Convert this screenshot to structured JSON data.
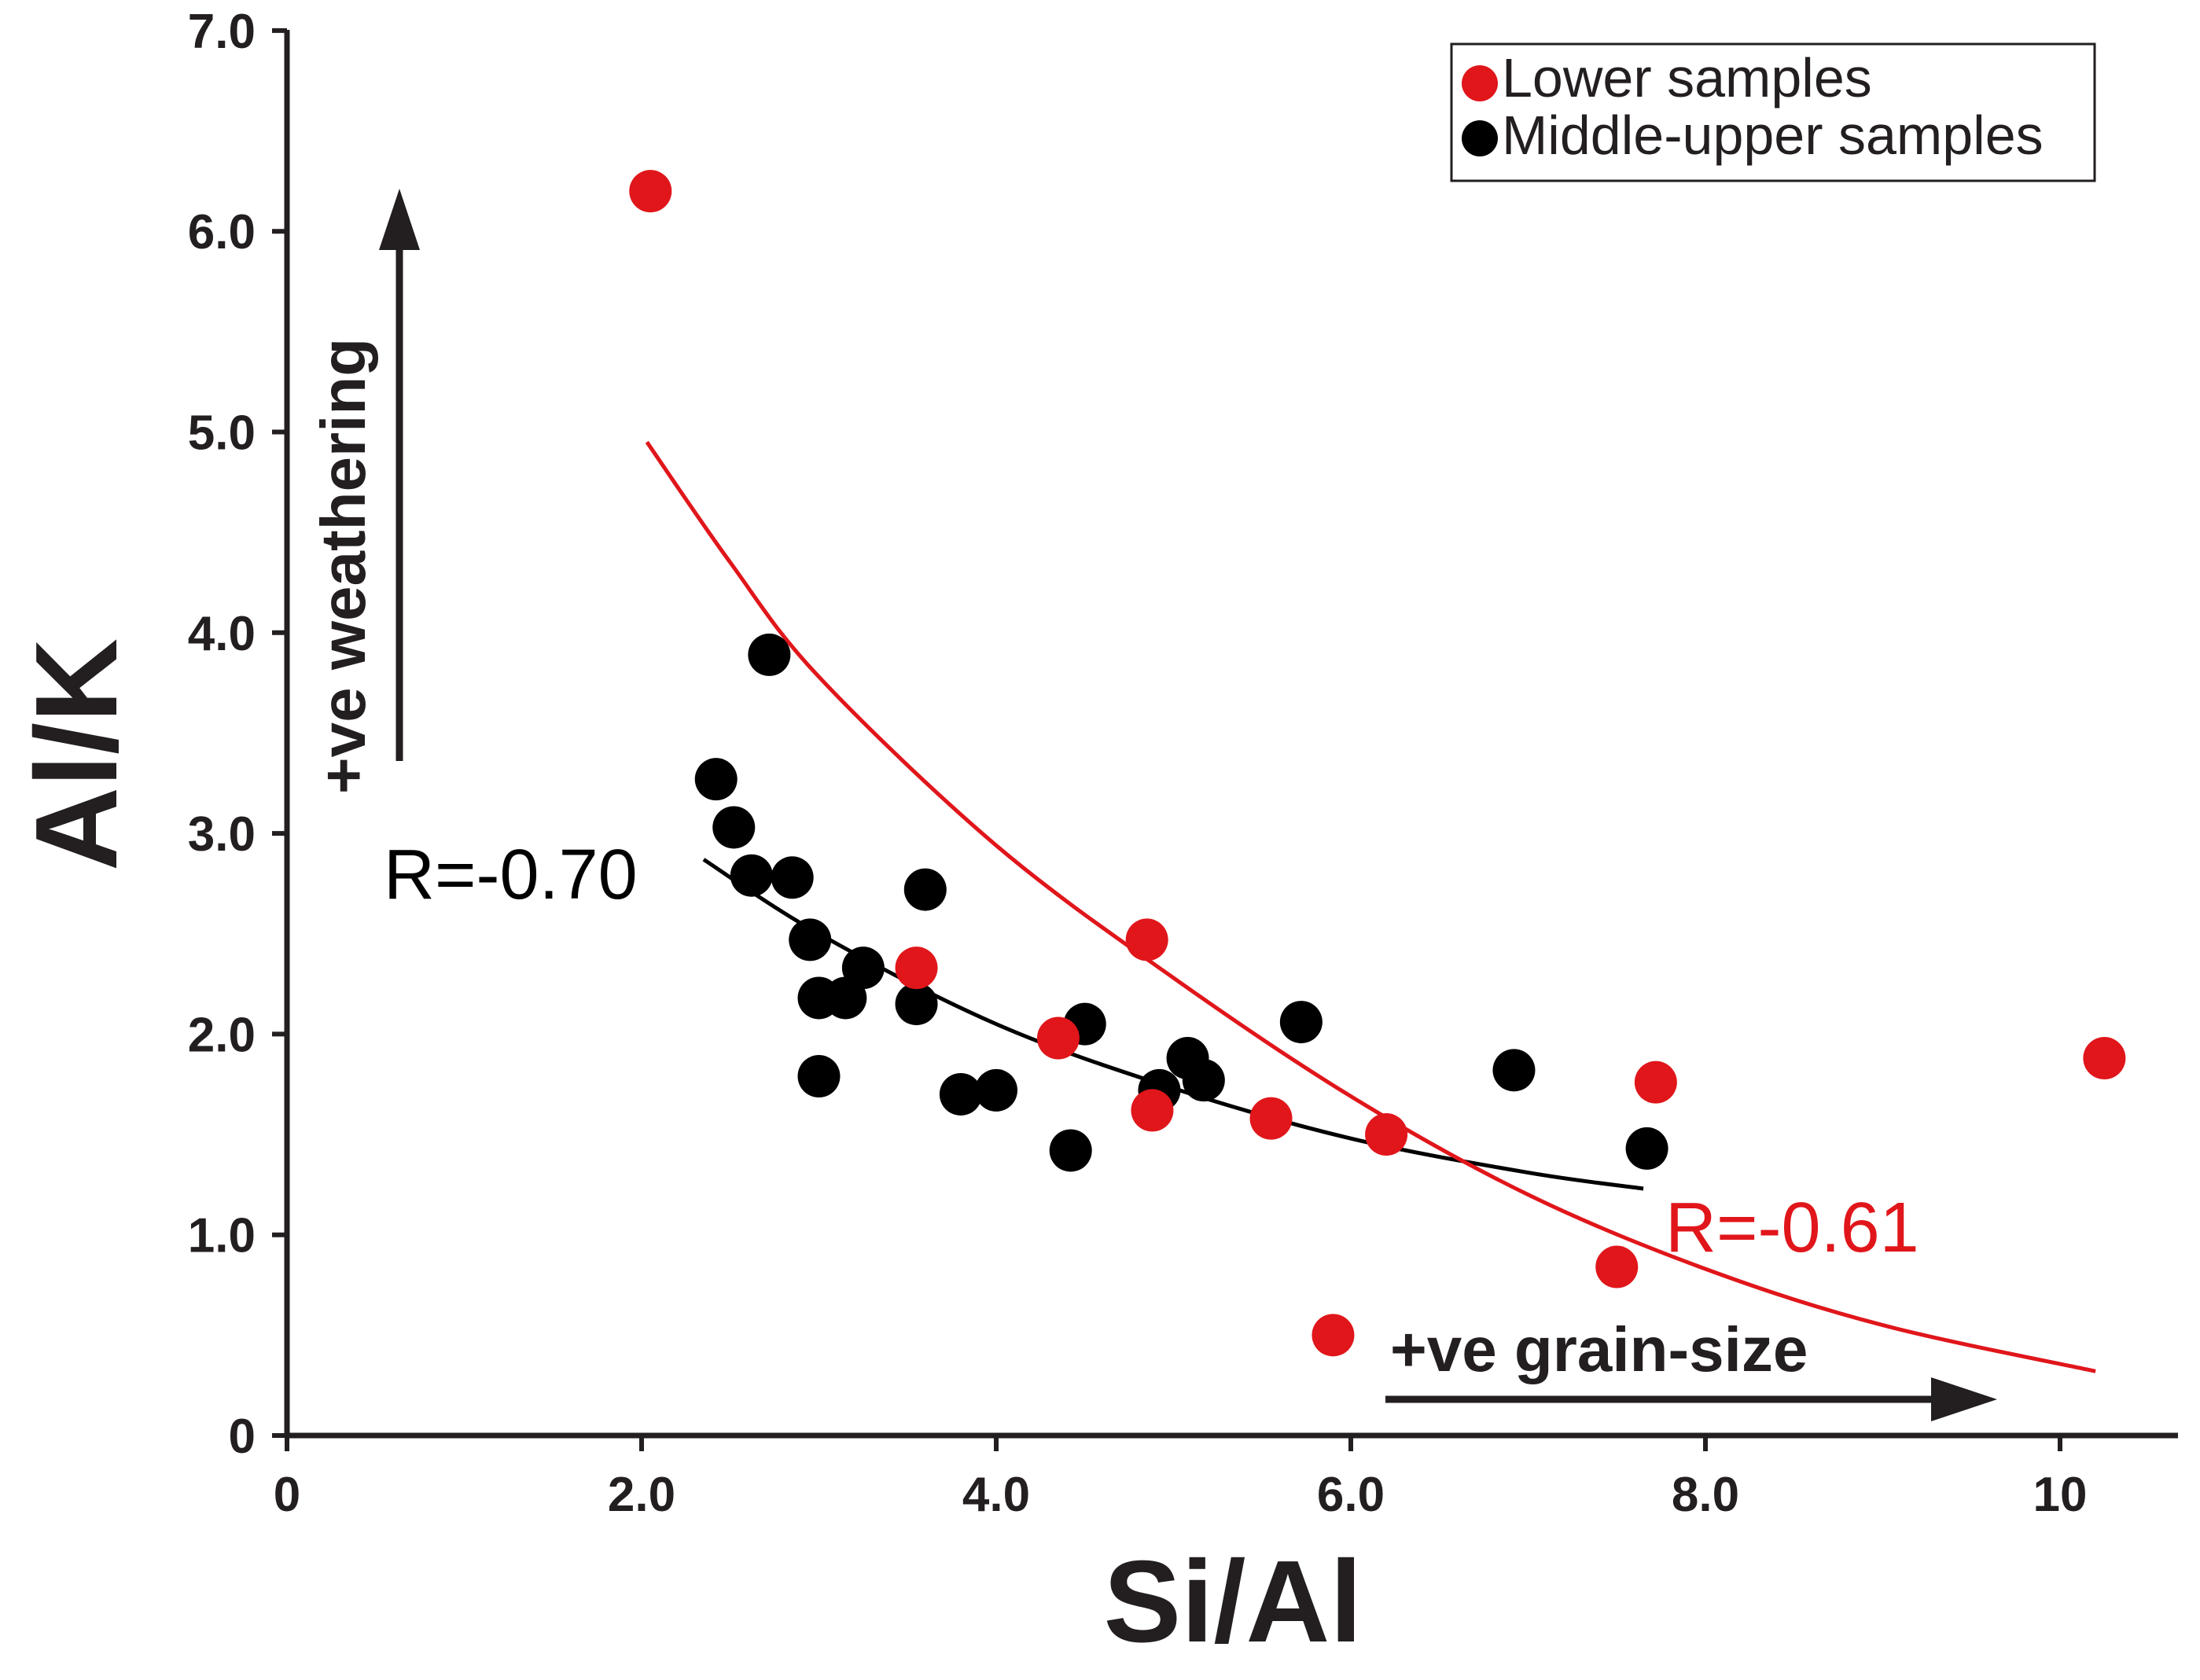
{
  "chart_data": {
    "type": "scatter",
    "xlabel": "Si/Al",
    "ylabel": "Al/K",
    "xlim": [
      0,
      10.4
    ],
    "ylim": [
      0,
      7.0
    ],
    "x_ticks": [
      {
        "value": 0,
        "label": "0"
      },
      {
        "value": 2,
        "label": "2.0"
      },
      {
        "value": 4,
        "label": "4.0"
      },
      {
        "value": 6,
        "label": "6.0"
      },
      {
        "value": 8,
        "label": "8.0"
      },
      {
        "value": 10,
        "label": "10"
      }
    ],
    "y_ticks": [
      {
        "value": 0,
        "label": "0"
      },
      {
        "value": 1,
        "label": "1.0"
      },
      {
        "value": 2,
        "label": "2.0"
      },
      {
        "value": 3,
        "label": "3.0"
      },
      {
        "value": 4,
        "label": "4.0"
      },
      {
        "value": 5,
        "label": "5.0"
      },
      {
        "value": 6,
        "label": "6.0"
      },
      {
        "value": 7,
        "label": "7.0"
      }
    ],
    "series": [
      {
        "name": "Lower samples",
        "color": "#e0161b",
        "points": [
          {
            "x": 2.05,
            "y": 6.2
          },
          {
            "x": 3.55,
            "y": 2.33
          },
          {
            "x": 4.35,
            "y": 1.98
          },
          {
            "x": 4.85,
            "y": 2.47
          },
          {
            "x": 4.88,
            "y": 1.62
          },
          {
            "x": 5.55,
            "y": 1.58
          },
          {
            "x": 6.2,
            "y": 1.5
          },
          {
            "x": 5.9,
            "y": 0.5
          },
          {
            "x": 7.5,
            "y": 0.84
          },
          {
            "x": 7.72,
            "y": 1.76
          },
          {
            "x": 10.25,
            "y": 1.88
          }
        ]
      },
      {
        "name": "Middle-upper samples",
        "color": "#000000",
        "points": [
          {
            "x": 2.72,
            "y": 3.89
          },
          {
            "x": 2.42,
            "y": 3.27
          },
          {
            "x": 2.52,
            "y": 3.03
          },
          {
            "x": 2.62,
            "y": 2.79
          },
          {
            "x": 2.85,
            "y": 2.78
          },
          {
            "x": 3.6,
            "y": 2.72
          },
          {
            "x": 2.95,
            "y": 2.47
          },
          {
            "x": 3.25,
            "y": 2.33
          },
          {
            "x": 3.0,
            "y": 2.18
          },
          {
            "x": 3.15,
            "y": 2.18
          },
          {
            "x": 3.55,
            "y": 2.15
          },
          {
            "x": 3.0,
            "y": 1.79
          },
          {
            "x": 3.8,
            "y": 1.7
          },
          {
            "x": 4.0,
            "y": 1.72
          },
          {
            "x": 4.5,
            "y": 2.05
          },
          {
            "x": 4.42,
            "y": 1.42
          },
          {
            "x": 4.92,
            "y": 1.72
          },
          {
            "x": 5.08,
            "y": 1.88
          },
          {
            "x": 5.17,
            "y": 1.77
          },
          {
            "x": 5.72,
            "y": 2.06
          },
          {
            "x": 6.92,
            "y": 1.82
          },
          {
            "x": 7.67,
            "y": 1.43
          }
        ]
      }
    ],
    "fits": [
      {
        "name": "Middle-upper fit",
        "color": "#000000",
        "label": "R=-0.70",
        "curve": [
          {
            "x": 2.35,
            "y": 2.87
          },
          {
            "x": 3.0,
            "y": 2.5
          },
          {
            "x": 4.0,
            "y": 2.05
          },
          {
            "x": 5.0,
            "y": 1.73
          },
          {
            "x": 6.0,
            "y": 1.48
          },
          {
            "x": 7.0,
            "y": 1.31
          },
          {
            "x": 7.65,
            "y": 1.23
          }
        ]
      },
      {
        "name": "Lower fit",
        "color": "#e0161b",
        "label": "R=-0.61",
        "curve": [
          {
            "x": 2.03,
            "y": 4.95
          },
          {
            "x": 2.5,
            "y": 4.35
          },
          {
            "x": 3.0,
            "y": 3.78
          },
          {
            "x": 4.0,
            "y": 2.94
          },
          {
            "x": 5.0,
            "y": 2.28
          },
          {
            "x": 6.0,
            "y": 1.69
          },
          {
            "x": 7.0,
            "y": 1.2
          },
          {
            "x": 8.0,
            "y": 0.83
          },
          {
            "x": 9.0,
            "y": 0.55
          },
          {
            "x": 10.2,
            "y": 0.32
          }
        ]
      }
    ],
    "annotations": {
      "weathering": "+ve weathering",
      "grain_size": "+ve grain-size"
    },
    "legend": {
      "position": "top-right",
      "entries": [
        "Lower samples",
        "Middle-upper samples"
      ]
    }
  }
}
